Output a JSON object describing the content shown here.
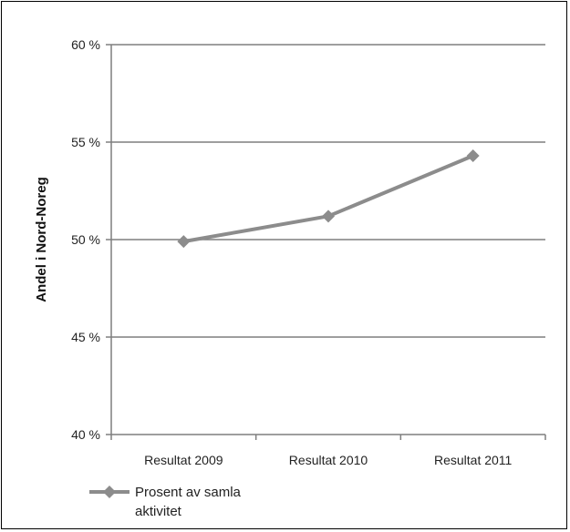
{
  "chart_data": {
    "type": "line",
    "title": "",
    "xlabel": "",
    "ylabel": "Andel i Nord-Noreg",
    "categories": [
      "Resultat 2009",
      "Resultat 2010",
      "Resultat 2011"
    ],
    "yticks": [
      "40 %",
      "45 %",
      "50 %",
      "55 %",
      "60 %"
    ],
    "ylim": [
      40,
      60
    ],
    "grid": true,
    "legend_position": "bottom-left",
    "series": [
      {
        "name": "Prosent av samla aktivitet",
        "values": [
          49.9,
          51.2,
          54.3
        ],
        "color": "#8c8c8c",
        "marker": "diamond"
      }
    ]
  }
}
